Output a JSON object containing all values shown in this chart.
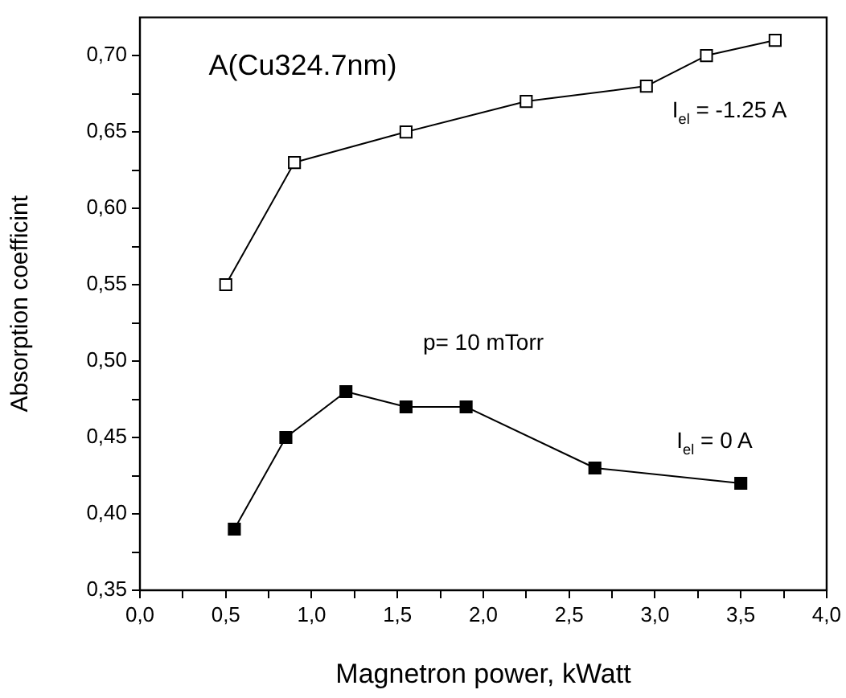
{
  "chart_data": {
    "type": "line",
    "xlabel": "Magnetron power, kWatt",
    "ylabel": "Absorption coefficint",
    "xlim": [
      0,
      4
    ],
    "ylim": [
      0.35,
      0.725
    ],
    "xticks": [
      {
        "value": 0,
        "label": "0,0"
      },
      {
        "value": 0.25,
        "label": null
      },
      {
        "value": 0.5,
        "label": "0,5"
      },
      {
        "value": 0.75,
        "label": null
      },
      {
        "value": 1,
        "label": "1,0"
      },
      {
        "value": 1.25,
        "label": null
      },
      {
        "value": 1.5,
        "label": "1,5"
      },
      {
        "value": 1.75,
        "label": null
      },
      {
        "value": 2,
        "label": "2,0"
      },
      {
        "value": 2.25,
        "label": null
      },
      {
        "value": 2.5,
        "label": "2,5"
      },
      {
        "value": 2.75,
        "label": null
      },
      {
        "value": 3,
        "label": "3,0"
      },
      {
        "value": 3.25,
        "label": null
      },
      {
        "value": 3.5,
        "label": "3,5"
      },
      {
        "value": 3.75,
        "label": null
      },
      {
        "value": 4,
        "label": "4,0"
      }
    ],
    "yticks": [
      {
        "value": 0.35,
        "label": "0,35"
      },
      {
        "value": 0.375,
        "label": null
      },
      {
        "value": 0.4,
        "label": "0,40"
      },
      {
        "value": 0.425,
        "label": null
      },
      {
        "value": 0.45,
        "label": "0,45"
      },
      {
        "value": 0.475,
        "label": null
      },
      {
        "value": 0.5,
        "label": "0,50"
      },
      {
        "value": 0.525,
        "label": null
      },
      {
        "value": 0.55,
        "label": "0,55"
      },
      {
        "value": 0.575,
        "label": null
      },
      {
        "value": 0.6,
        "label": "0,60"
      },
      {
        "value": 0.625,
        "label": null
      },
      {
        "value": 0.65,
        "label": "0,65"
      },
      {
        "value": 0.675,
        "label": null
      },
      {
        "value": 0.7,
        "label": "0,70"
      }
    ],
    "grid": false,
    "legend": false,
    "marker": "square",
    "line_style": "solid",
    "annotations": [
      "A(Cu324.7nm)",
      "p= 10 mTorr"
    ],
    "series": [
      {
        "name": "I$_{el}$ = -1.25 A",
        "color": "#000000",
        "x": [
          0.5,
          0.9,
          1.55,
          2.25,
          2.95,
          3.3,
          3.7
        ],
        "values": [
          0.55,
          0.63,
          0.65,
          0.67,
          0.68,
          0.7,
          0.71
        ]
      },
      {
        "name": "I$_{el}$ = 0 A",
        "color": "#000000",
        "x": [
          0.55,
          0.85,
          1.2,
          1.55,
          1.9,
          2.65,
          3.5
        ],
        "values": [
          0.39,
          0.45,
          0.48,
          0.47,
          0.47,
          0.43,
          0.42
        ]
      }
    ]
  }
}
